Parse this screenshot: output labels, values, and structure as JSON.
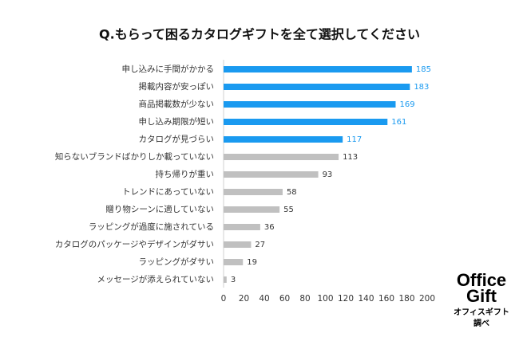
{
  "chart_data": {
    "type": "bar",
    "orientation": "horizontal",
    "title": "Q.もらって困るカタログギフトを全て選択してください",
    "categories": [
      "申し込みに手間がかかる",
      "掲載内容が安っぽい",
      "商品掲載数が少ない",
      "申し込み期限が短い",
      "カタログが見づらい",
      "知らないブランドばかりしか載っていない",
      "持ち帰りが重い",
      "トレンドにあっていない",
      "贈り物シーンに適していない",
      "ラッピングが過度に施されている",
      "カタログのパッケージやデザインがダサい",
      "ラッピングがダサい",
      "メッセージが添えられていない"
    ],
    "values": [
      185,
      183,
      169,
      161,
      117,
      113,
      93,
      58,
      55,
      36,
      27,
      19,
      3
    ],
    "colors": [
      "#1a9af0",
      "#1a9af0",
      "#1a9af0",
      "#1a9af0",
      "#1a9af0",
      "#c0c0c0",
      "#c0c0c0",
      "#c0c0c0",
      "#c0c0c0",
      "#c0c0c0",
      "#c0c0c0",
      "#c0c0c0",
      "#c0c0c0"
    ],
    "value_label_colors": [
      "#1a9af0",
      "#1a9af0",
      "#1a9af0",
      "#1a9af0",
      "#1a9af0",
      "#333333",
      "#333333",
      "#333333",
      "#333333",
      "#333333",
      "#333333",
      "#333333",
      "#333333"
    ],
    "xlim": [
      0,
      200
    ],
    "xticks": [
      0,
      20,
      40,
      60,
      80,
      100,
      120,
      140,
      160,
      180,
      200
    ],
    "grid": false
  },
  "logo": {
    "line1": "Office",
    "line2": "Gift",
    "caption1": "オフィスギフト",
    "caption2": "調べ"
  }
}
